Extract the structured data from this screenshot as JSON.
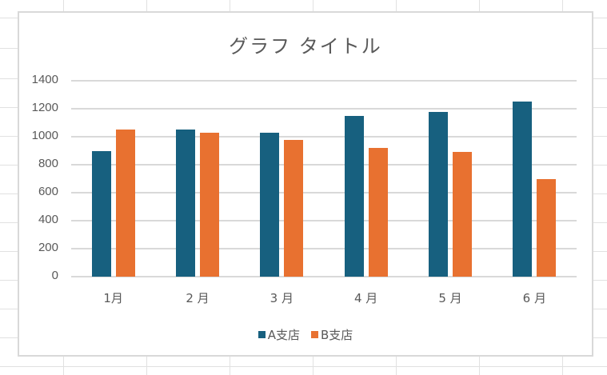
{
  "chart_data": {
    "type": "bar",
    "title": "グラフ タイトル",
    "categories": [
      "1月",
      "2 月",
      "3 月",
      "4 月",
      "5 月",
      "6 月"
    ],
    "series": [
      {
        "name": "A支店",
        "color": "#17607f",
        "values": [
          900,
          1050,
          1030,
          1150,
          1180,
          1250
        ]
      },
      {
        "name": "B支店",
        "color": "#e87130",
        "values": [
          1050,
          1030,
          980,
          920,
          890,
          700
        ]
      }
    ],
    "xlabel": "",
    "ylabel": "",
    "ylim": [
      0,
      1400
    ],
    "yticks": [
      0,
      200,
      400,
      600,
      800,
      1000,
      1200,
      1400
    ],
    "grid": true,
    "legend_position": "bottom"
  },
  "colors": {
    "series_a": "#17607f",
    "series_b": "#e87130",
    "gridline": "#d9d9d9",
    "text": "#595959"
  }
}
